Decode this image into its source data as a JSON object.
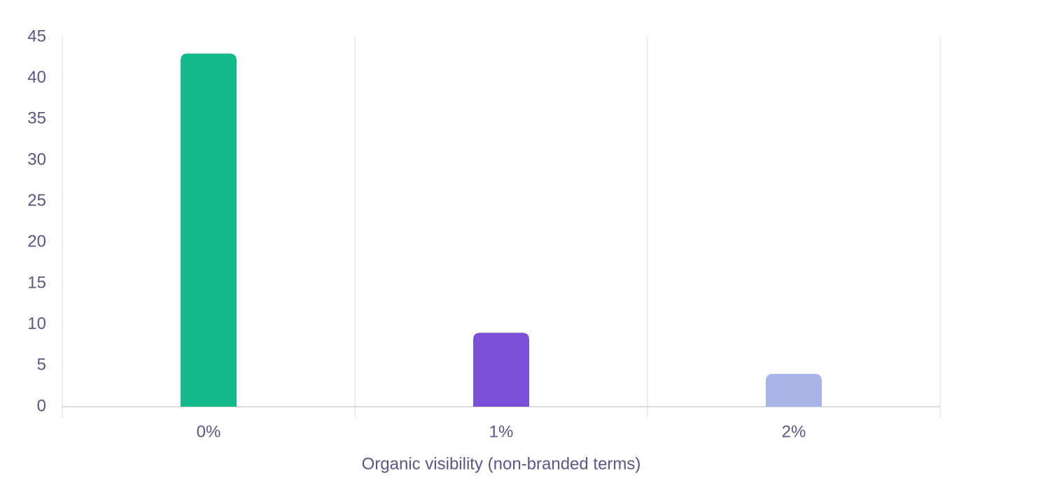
{
  "chart_data": {
    "type": "bar",
    "x_label": "Organic visibility (non-branded terms)",
    "categories": [
      "0%",
      "1%",
      "2%"
    ],
    "values": [
      43,
      9,
      4
    ],
    "colors": [
      "#13b98a",
      "#7b4fd6",
      "#aab4e8"
    ],
    "ylim": [
      0,
      45
    ],
    "yticks": [
      0,
      5,
      10,
      15,
      20,
      25,
      30,
      35,
      40,
      45
    ]
  }
}
